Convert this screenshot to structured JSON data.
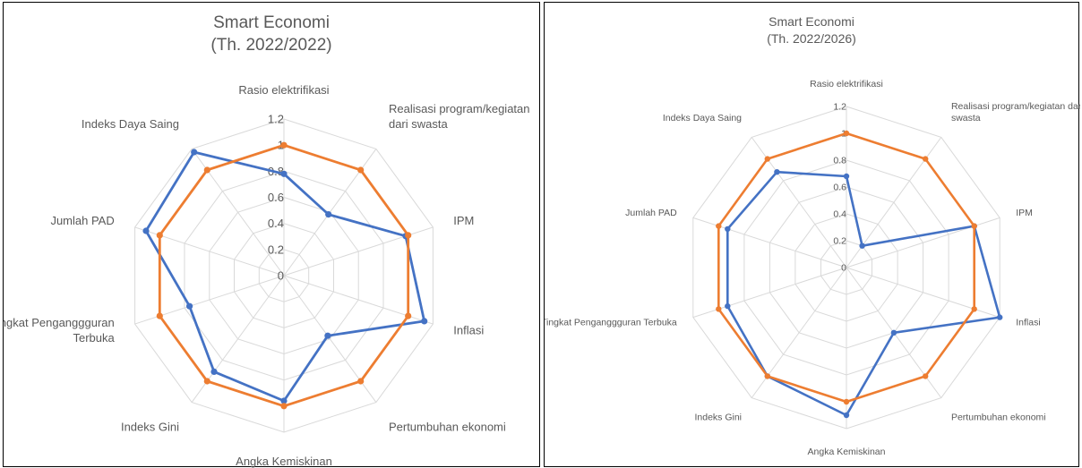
{
  "chart_data": [
    {
      "type": "radar",
      "title": "Smart Economi",
      "subtitle": "(Th. 2022/2022)",
      "categories": [
        "Rasio elektrifikasi",
        "Realisasi program/kegiatan dari swasta",
        "IPM",
        "Inflasi",
        "Pertumbuhan ekonomi",
        "Angka Kemiskinan",
        "Indeks Gini",
        "Tingkat Penganggguran Terbuka",
        "Jumlah PAD",
        "Indeks Daya Saing"
      ],
      "category_labels": [
        [
          "Rasio elektrifikasi"
        ],
        [
          "Realisasi program/kegiatan",
          "dari swasta"
        ],
        [
          "IPM"
        ],
        [
          "Inflasi"
        ],
        [
          "Pertumbuhan ekonomi"
        ],
        [
          "Angka Kemiskinan"
        ],
        [
          "Indeks Gini"
        ],
        [
          "Tingkat Penganggguran",
          "Terbuka"
        ],
        [
          "Jumlah PAD"
        ],
        [
          "Indeks Daya Saing"
        ]
      ],
      "rlim": [
        0,
        1.2
      ],
      "ticks": [
        "0",
        "0.2",
        "0.4",
        "0.6",
        "0.8",
        "1",
        "1.2"
      ],
      "grid": true,
      "legend": "none",
      "series": [
        {
          "color": "#4472C4",
          "values": [
            0.78,
            0.58,
            0.98,
            1.13,
            0.57,
            0.96,
            0.91,
            0.76,
            1.11,
            1.17
          ]
        },
        {
          "color": "#ED7D31",
          "values": [
            1.0,
            1.0,
            1.0,
            1.0,
            1.0,
            1.0,
            1.0,
            1.0,
            1.0,
            1.0
          ]
        }
      ]
    },
    {
      "type": "radar",
      "title": "Smart Economi",
      "subtitle": "(Th. 2022/2026)",
      "categories": [
        "Rasio elektrifikasi",
        "Realisasi program/kegiatan dari swasta",
        "IPM",
        "Inflasi",
        "Pertumbuhan ekonomi",
        "Angka Kemiskinan",
        "Indeks Gini",
        "Tingkat Penganggguran Terbuka",
        "Jumlah PAD",
        "Indeks Daya Saing"
      ],
      "category_labels": [
        [
          "Rasio elektrifikasi"
        ],
        [
          "Realisasi program/kegiatan dari",
          "swasta"
        ],
        [
          "IPM"
        ],
        [
          "Inflasi"
        ],
        [
          "Pertumbuhan ekonomi"
        ],
        [
          "Angka Kemiskinan"
        ],
        [
          "Indeks Gini"
        ],
        [
          "Tingkat Penganggguran Terbuka"
        ],
        [
          "Jumlah PAD"
        ],
        [
          "Indeks Daya Saing"
        ]
      ],
      "rlim": [
        0,
        1.2
      ],
      "ticks": [
        "0",
        "0.2",
        "0.4",
        "0.6",
        "0.8",
        "1",
        "1.2"
      ],
      "grid": true,
      "legend": "none",
      "series": [
        {
          "color": "#4472C4",
          "values": [
            0.68,
            0.2,
            1.0,
            1.2,
            0.6,
            1.1,
            1.0,
            0.93,
            0.93,
            0.88
          ]
        },
        {
          "color": "#ED7D31",
          "values": [
            1.0,
            1.0,
            1.0,
            1.0,
            1.0,
            1.0,
            1.0,
            1.0,
            1.0,
            1.0
          ]
        }
      ]
    }
  ]
}
